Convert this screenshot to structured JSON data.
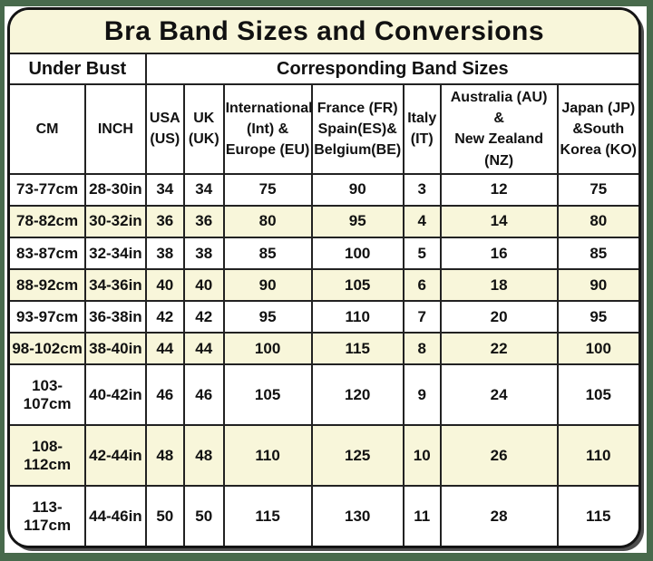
{
  "title": "Bra Band Sizes and Conversions",
  "group_headers": {
    "under_bust": "Under Bust",
    "corresponding": "Corresponding Band Sizes"
  },
  "columns": [
    {
      "label": "CM"
    },
    {
      "label": "INCH"
    },
    {
      "label": "USA\n(US)"
    },
    {
      "label": "UK\n(UK)"
    },
    {
      "label": "International\n(Int) &\nEurope (EU)"
    },
    {
      "label": "France (FR)\nSpain(ES)&\nBelgium(BE)"
    },
    {
      "label": "Italy\n(IT)"
    },
    {
      "label": "Australia (AU)\n&\nNew Zealand\n(NZ)"
    },
    {
      "label": "Japan (JP)\n&South\nKorea (KO)"
    }
  ],
  "table": {
    "rows": [
      {
        "cells": [
          "73-77cm",
          "28-30in",
          "34",
          "34",
          "75",
          "90",
          "3",
          "12",
          "75"
        ]
      },
      {
        "cells": [
          "78-82cm",
          "30-32in",
          "36",
          "36",
          "80",
          "95",
          "4",
          "14",
          "80"
        ]
      },
      {
        "cells": [
          "83-87cm",
          "32-34in",
          "38",
          "38",
          "85",
          "100",
          "5",
          "16",
          "85"
        ]
      },
      {
        "cells": [
          "88-92cm",
          "34-36in",
          "40",
          "40",
          "90",
          "105",
          "6",
          "18",
          "90"
        ]
      },
      {
        "cells": [
          "93-97cm",
          "36-38in",
          "42",
          "42",
          "95",
          "110",
          "7",
          "20",
          "95"
        ]
      },
      {
        "cells": [
          "98-102cm",
          "38-40in",
          "44",
          "44",
          "100",
          "115",
          "8",
          "22",
          "100"
        ]
      },
      {
        "cells": [
          "103-107cm",
          "40-42in",
          "46",
          "46",
          "105",
          "120",
          "9",
          "24",
          "105"
        ]
      },
      {
        "cells": [
          "108-112cm",
          "42-44in",
          "48",
          "48",
          "110",
          "125",
          "10",
          "26",
          "110"
        ]
      },
      {
        "cells": [
          "113-117cm",
          "44-46in",
          "50",
          "50",
          "115",
          "130",
          "11",
          "28",
          "115"
        ]
      }
    ]
  },
  "colors": {
    "cream": "#F8F6DA",
    "row_white": "#FFFFFF",
    "frame_green": "#486A4C",
    "border_black": "#222222"
  }
}
